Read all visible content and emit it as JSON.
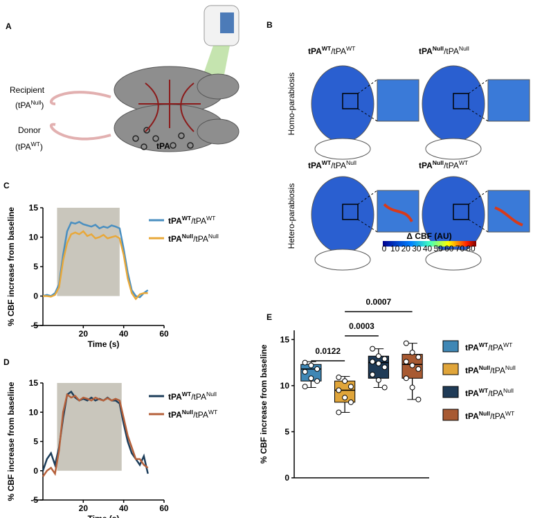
{
  "panel_labels": [
    "A",
    "B",
    "C",
    "D",
    "E"
  ],
  "panel_a": {
    "recipient": "Recipient",
    "recipient_genotype": [
      "(tPA",
      "Null",
      ")"
    ],
    "donor": "Donor",
    "donor_genotype": [
      "(tPA",
      "WT",
      ")"
    ],
    "molecule": "tPA"
  },
  "panel_b": {
    "rows": [
      "Homo-parabiosis",
      "Hetero-parabiosis"
    ],
    "titles": [
      [
        "tPA",
        "WT",
        "/tPA",
        "WT"
      ],
      [
        "tPA",
        "Null",
        "/tPA",
        "Null"
      ],
      [
        "tPA",
        "WT",
        "/tPA",
        "Null"
      ],
      [
        "tPA",
        "Null",
        "/tPA",
        "WT"
      ]
    ],
    "colorbar_title": "Δ CBF (AU)",
    "colorbar_ticks": [
      0,
      10,
      20,
      30,
      40,
      50,
      60,
      70,
      80
    ]
  },
  "chart_data": [
    {
      "type": "line",
      "xlabel": "Time (s)",
      "ylabel": "% CBF increase from baseline",
      "x": [
        0,
        2,
        4,
        6,
        8,
        10,
        12,
        14,
        16,
        18,
        20,
        22,
        24,
        26,
        28,
        30,
        32,
        34,
        36,
        38,
        40,
        42,
        44,
        46,
        48,
        50,
        52
      ],
      "shaded": [
        7,
        38
      ],
      "series": [
        {
          "name": [
            "tPA",
            "WT",
            "/tPA",
            "WT"
          ],
          "color": "#4a8fc0",
          "values": [
            0,
            0.2,
            0,
            0.5,
            2,
            7,
            11,
            12.5,
            12.3,
            12.6,
            12.2,
            12,
            11.8,
            12.1,
            11.5,
            11.8,
            11.6,
            12,
            11.8,
            11.5,
            8,
            4,
            1,
            0,
            -0.2,
            0.5,
            1
          ]
        },
        {
          "name": [
            "tPA",
            "Null",
            "/tPA",
            "Null"
          ],
          "color": "#e8a83a",
          "values": [
            0,
            0,
            -0.1,
            0.2,
            1.5,
            6,
            9,
            10.5,
            10.8,
            10.5,
            11,
            10.2,
            10.5,
            9.8,
            10,
            10.4,
            9.8,
            10,
            10.2,
            9.8,
            7,
            3,
            0.5,
            -0.5,
            0.3,
            0.5,
            0.5
          ]
        }
      ],
      "xlim": [
        0,
        60
      ],
      "xticks": [
        20,
        40,
        60
      ],
      "ylim": [
        -5,
        15
      ],
      "yticks": [
        -5,
        0,
        5,
        10,
        15
      ]
    },
    {
      "type": "line",
      "xlabel": "Time (s)",
      "ylabel": "% CBF increase from baseline",
      "x": [
        0,
        2,
        4,
        6,
        8,
        10,
        12,
        14,
        16,
        18,
        20,
        22,
        24,
        26,
        28,
        30,
        32,
        34,
        36,
        38,
        40,
        42,
        44,
        46,
        48,
        50,
        52
      ],
      "shaded": [
        7,
        39
      ],
      "series": [
        {
          "name": [
            "tPA",
            "WT",
            "/tPA",
            "Null"
          ],
          "color": "#1c3d5a",
          "values": [
            0,
            2,
            3,
            1,
            4,
            9,
            13,
            13.5,
            12.5,
            12,
            12.3,
            12,
            12.5,
            12,
            12.3,
            12,
            12.5,
            12,
            12,
            11.5,
            8,
            5,
            3,
            2,
            1,
            2.5,
            -0.5
          ]
        },
        {
          "name": [
            "tPA",
            "Null",
            "/tPA",
            "WT"
          ],
          "color": "#b5603a",
          "values": [
            -1,
            0,
            0.5,
            -0.5,
            3.5,
            10,
            13,
            12.5,
            12.8,
            12,
            12.5,
            12.3,
            12,
            12.5,
            12.2,
            12,
            12.4,
            12,
            12.3,
            12,
            9,
            6,
            4,
            2,
            2,
            1,
            0.5
          ]
        }
      ],
      "xlim": [
        0,
        60
      ],
      "xticks": [
        20,
        40,
        60
      ],
      "ylim": [
        -5,
        15
      ],
      "yticks": [
        -5,
        0,
        5,
        10,
        15
      ]
    },
    {
      "type": "box",
      "ylabel": "% CBF increase from baseline",
      "series": [
        {
          "name": [
            "tPA",
            "WT",
            "/tPA",
            "WT"
          ],
          "color": "#3f87b5",
          "min": 9.8,
          "q1": 10.5,
          "median": 11.8,
          "q3": 12.3,
          "max": 12.6,
          "points": [
            12.5,
            12.2,
            11.8,
            11.5,
            10.8,
            10.5,
            9.9
          ]
        },
        {
          "name": [
            "tPA",
            "Null",
            "/tPA",
            "Null"
          ],
          "color": "#e0a53a",
          "min": 7.1,
          "q1": 8.2,
          "median": 9.5,
          "q3": 10.5,
          "max": 11,
          "points": [
            10.9,
            10.5,
            9.9,
            9.5,
            8.7,
            8.2,
            7.1
          ]
        },
        {
          "name": [
            "tPA",
            "WT",
            "/tPA",
            "Null"
          ],
          "color": "#1f3b57",
          "min": 9.8,
          "q1": 10.8,
          "median": 12.5,
          "q3": 13.2,
          "max": 14,
          "points": [
            14,
            13.2,
            12.9,
            12.6,
            12.4,
            12,
            11.2,
            10.6,
            9.8
          ]
        },
        {
          "name": [
            "tPA",
            "Null",
            "/tPA",
            "WT"
          ],
          "color": "#a85a32",
          "min": 8.5,
          "q1": 10.8,
          "median": 12.3,
          "q3": 13.4,
          "max": 14.6,
          "points": [
            14.6,
            13.6,
            13.1,
            12.6,
            12.2,
            11.8,
            10.8,
            9.8,
            8.5
          ]
        }
      ],
      "comparisons": [
        {
          "groups": [
            0,
            1
          ],
          "label": "0.0122"
        },
        {
          "groups": [
            1,
            2
          ],
          "label": "0.0003"
        },
        {
          "groups": [
            1,
            3
          ],
          "label": "0.0007"
        }
      ],
      "ylim": [
        0,
        16
      ],
      "yticks": [
        0,
        5,
        10,
        15
      ]
    }
  ]
}
